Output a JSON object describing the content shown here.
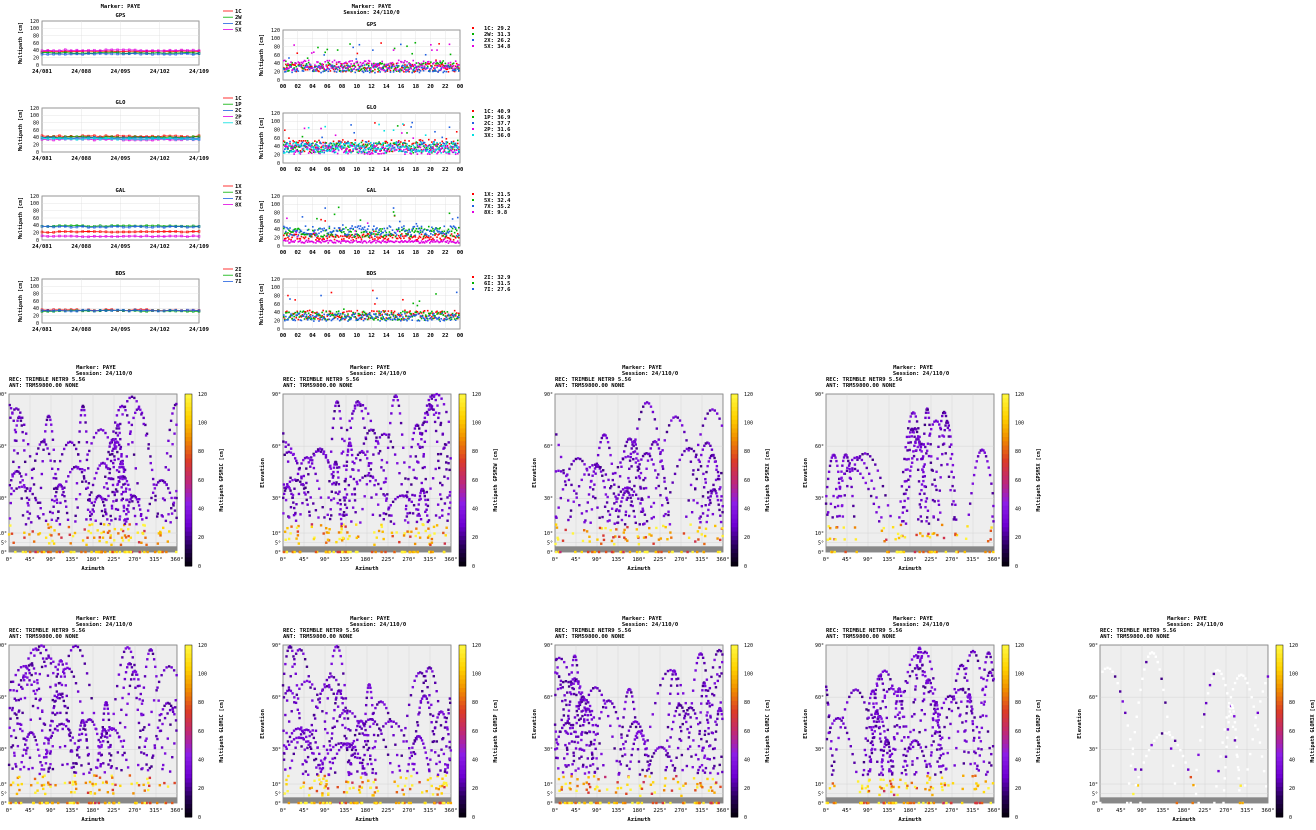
{
  "page": {
    "marker": "Marker: PAYE",
    "session": "Session: 24/110/0",
    "rec": "REC: TRIMBLE NETR9          5.56",
    "ant": "ANT: TRM59800.00       NONE"
  },
  "colors": {
    "c1": "#ff0000",
    "c2": "#00b000",
    "c3": "#2060e0",
    "c4": "#e000e0",
    "c5": "#00e0e0",
    "sky_bg": "#eeeeee"
  },
  "chart_data": [
    {
      "type": "line",
      "panel": "ts-gps",
      "title": "GPS",
      "marker_title": "Marker: PAYE",
      "ylabel": "Multipath [cm]",
      "ylim": [
        0,
        120
      ],
      "yticks": [
        0,
        20,
        40,
        60,
        80,
        100,
        120
      ],
      "x_categories": [
        "24/081",
        "24/088",
        "24/095",
        "24/102",
        "24/109"
      ],
      "series": [
        {
          "name": "1C",
          "level": 37
        },
        {
          "name": "2W",
          "level": 33
        },
        {
          "name": "2X",
          "level": 30
        },
        {
          "name": "5X",
          "level": 40
        }
      ]
    },
    {
      "type": "line",
      "panel": "ts-glo",
      "title": "GLO",
      "ylabel": "Multipath [cm]",
      "ylim": [
        0,
        120
      ],
      "yticks": [
        0,
        20,
        40,
        60,
        80,
        100,
        120
      ],
      "x_categories": [
        "24/081",
        "24/088",
        "24/095",
        "24/102",
        "24/109"
      ],
      "series": [
        {
          "name": "1C",
          "level": 43
        },
        {
          "name": "1P",
          "level": 40
        },
        {
          "name": "2C",
          "level": 38
        },
        {
          "name": "2P",
          "level": 34
        },
        {
          "name": "3X",
          "level": 36
        }
      ]
    },
    {
      "type": "line",
      "panel": "ts-gal",
      "title": "GAL",
      "ylabel": "Multipath [cm]",
      "ylim": [
        0,
        120
      ],
      "yticks": [
        0,
        20,
        40,
        60,
        80,
        100,
        120
      ],
      "x_categories": [
        "24/081",
        "24/088",
        "24/095",
        "24/102",
        "24/109"
      ],
      "series": [
        {
          "name": "1X",
          "level": 22
        },
        {
          "name": "5X",
          "level": 38
        },
        {
          "name": "7X",
          "level": 36
        },
        {
          "name": "8X",
          "level": 10
        }
      ]
    },
    {
      "type": "line",
      "panel": "ts-bds",
      "title": "BDS",
      "ylabel": "Multipath [cm]",
      "ylim": [
        0,
        120
      ],
      "yticks": [
        0,
        20,
        40,
        60,
        80,
        100,
        120
      ],
      "x_categories": [
        "24/081",
        "24/088",
        "24/095",
        "24/102",
        "24/109"
      ],
      "series": [
        {
          "name": "2I",
          "level": 35
        },
        {
          "name": "6I",
          "level": 33
        },
        {
          "name": "7I",
          "level": 34
        }
      ]
    },
    {
      "type": "scatter",
      "panel": "dd-gps",
      "title": "GPS",
      "marker_title": "Marker: PAYE",
      "session_title": "Session: 24/110/0",
      "ylabel": "Multipath [cm]",
      "ylim": [
        0,
        120
      ],
      "yticks": [
        0,
        20,
        40,
        60,
        80,
        100,
        120
      ],
      "x_ticks": [
        "00",
        "02",
        "04",
        "06",
        "08",
        "10",
        "12",
        "14",
        "16",
        "18",
        "20",
        "22",
        "00"
      ],
      "series": [
        {
          "name": "1C",
          "mean": 29.2,
          "label": "1C: 29.2"
        },
        {
          "name": "2W",
          "mean": 31.3,
          "label": "2W: 31.3"
        },
        {
          "name": "2X",
          "mean": 26.2,
          "label": "2X: 26.2"
        },
        {
          "name": "5X",
          "mean": 34.8,
          "label": "5X: 34.8"
        }
      ]
    },
    {
      "type": "scatter",
      "panel": "dd-glo",
      "title": "GLO",
      "ylabel": "Multipath [cm]",
      "ylim": [
        0,
        120
      ],
      "yticks": [
        0,
        20,
        40,
        60,
        80,
        100,
        120
      ],
      "x_ticks": [
        "00",
        "02",
        "04",
        "06",
        "08",
        "10",
        "12",
        "14",
        "16",
        "18",
        "20",
        "22",
        "00"
      ],
      "series": [
        {
          "name": "1C",
          "mean": 40.9,
          "label": "1C: 40.9"
        },
        {
          "name": "1P",
          "mean": 36.9,
          "label": "1P: 36.9"
        },
        {
          "name": "2C",
          "mean": 37.7,
          "label": "2C: 37.7"
        },
        {
          "name": "2P",
          "mean": 31.6,
          "label": "2P: 31.6"
        },
        {
          "name": "3X",
          "mean": 36.0,
          "label": "3X: 36.0"
        }
      ]
    },
    {
      "type": "scatter",
      "panel": "dd-gal",
      "title": "GAL",
      "ylabel": "Multipath [cm]",
      "ylim": [
        0,
        120
      ],
      "yticks": [
        0,
        20,
        40,
        60,
        80,
        100,
        120
      ],
      "x_ticks": [
        "00",
        "02",
        "04",
        "06",
        "08",
        "10",
        "12",
        "14",
        "16",
        "18",
        "20",
        "22",
        "00"
      ],
      "series": [
        {
          "name": "1X",
          "mean": 21.5,
          "label": "1X: 21.5"
        },
        {
          "name": "5X",
          "mean": 32.4,
          "label": "5X: 32.4"
        },
        {
          "name": "7X",
          "mean": 35.2,
          "label": "7X: 35.2"
        },
        {
          "name": "8X",
          "mean": 9.8,
          "label": "8X:  9.8"
        }
      ]
    },
    {
      "type": "scatter",
      "panel": "dd-bds",
      "title": "BDS",
      "ylabel": "Multipath [cm]",
      "ylim": [
        0,
        120
      ],
      "yticks": [
        0,
        20,
        40,
        60,
        80,
        100,
        120
      ],
      "x_ticks": [
        "00",
        "02",
        "04",
        "06",
        "08",
        "10",
        "12",
        "14",
        "16",
        "18",
        "20",
        "22",
        "00"
      ],
      "series": [
        {
          "name": "2I",
          "mean": 32.9,
          "label": "2I: 32.9"
        },
        {
          "name": "6I",
          "mean": 31.5,
          "label": "6I: 31.5"
        },
        {
          "name": "7I",
          "mean": 27.6,
          "label": "7I: 27.6"
        }
      ]
    },
    {
      "type": "heatmap",
      "panel": "sky-gps-1c",
      "colorbar_label": "Multipath GPSM1C [cm]",
      "xlabel": "Azimuth",
      "ylabel": "Elevation",
      "clim": [
        0,
        120
      ],
      "density": 1.0
    },
    {
      "type": "heatmap",
      "panel": "sky-gps-2w",
      "colorbar_label": "Multipath GPSM2W [cm]",
      "xlabel": "Azimuth",
      "ylabel": "Elevation",
      "clim": [
        0,
        120
      ],
      "density": 1.0
    },
    {
      "type": "heatmap",
      "panel": "sky-gps-2x",
      "colorbar_label": "Multipath GPSM2X [cm]",
      "xlabel": "Azimuth",
      "ylabel": "Elevation",
      "clim": [
        0,
        120
      ],
      "density": 0.75
    },
    {
      "type": "heatmap",
      "panel": "sky-gps-5x",
      "colorbar_label": "Multipath GPSM5X [cm]",
      "xlabel": "Azimuth",
      "ylabel": "Elevation",
      "clim": [
        0,
        120
      ],
      "density": 0.6
    },
    {
      "type": "heatmap",
      "panel": "sky-glo-1c",
      "colorbar_label": "Multipath GLOM1C [cm]",
      "xlabel": "Azimuth",
      "ylabel": "Elevation",
      "clim": [
        0,
        120
      ],
      "density": 1.0
    },
    {
      "type": "heatmap",
      "panel": "sky-glo-1p",
      "colorbar_label": "Multipath GLOM1P [cm]",
      "xlabel": "Azimuth",
      "ylabel": "Elevation",
      "clim": [
        0,
        120
      ],
      "density": 1.0
    },
    {
      "type": "heatmap",
      "panel": "sky-glo-2c",
      "colorbar_label": "Multipath GLOM2C [cm]",
      "xlabel": "Azimuth",
      "ylabel": "Elevation",
      "clim": [
        0,
        120
      ],
      "density": 1.0
    },
    {
      "type": "heatmap",
      "panel": "sky-glo-2p",
      "colorbar_label": "Multipath GLOM2P [cm]",
      "xlabel": "Azimuth",
      "ylabel": "Elevation",
      "clim": [
        0,
        120
      ],
      "density": 1.0
    },
    {
      "type": "heatmap",
      "panel": "sky-glo-3x",
      "colorbar_label": "Multipath GLOM3X [cm]",
      "xlabel": "Azimuth",
      "ylabel": "Elevation",
      "clim": [
        0,
        120
      ],
      "density": 0.2
    }
  ],
  "sky_axes": {
    "x_ticks": [
      "0°",
      "45°",
      "90°",
      "135°",
      "180°",
      "225°",
      "270°",
      "315°",
      "360°"
    ],
    "y_ticks": [
      {
        "value": 0,
        "label": "0°"
      },
      {
        "value": 5,
        "label": "5°"
      },
      {
        "value": 10,
        "label": "10°"
      },
      {
        "value": 30,
        "label": "30°"
      },
      {
        "value": 60,
        "label": "60°"
      },
      {
        "value": 90,
        "label": "90°"
      }
    ],
    "colorbar_ticks": [
      0,
      20,
      40,
      60,
      80,
      100,
      120
    ]
  }
}
